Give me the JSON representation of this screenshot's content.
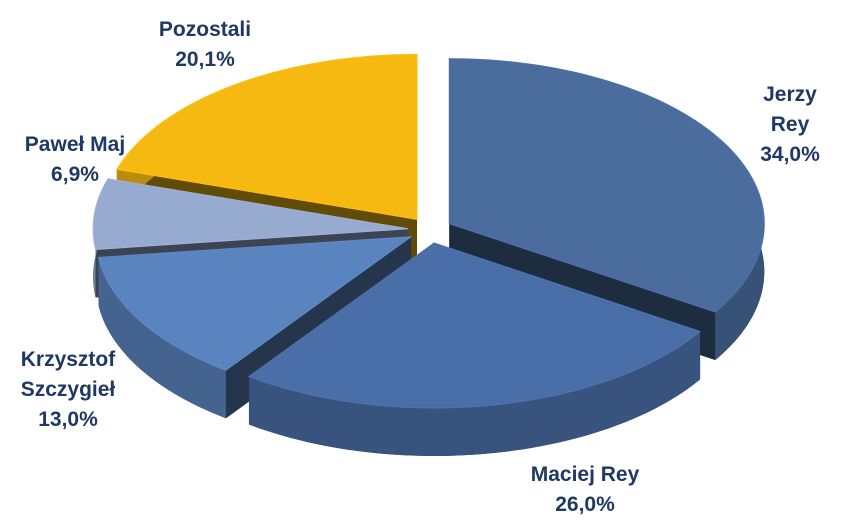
{
  "chart_data": {
    "type": "pie",
    "categories": [
      "Jerzy Rey",
      "Maciej Rey",
      "Krzysztof Szczygieł",
      "Paweł Maj",
      "Pozostali"
    ],
    "values": [
      34.0,
      26.0,
      13.0,
      6.9,
      20.1
    ],
    "value_labels": [
      "34,0%",
      "26,0%",
      "13,0%",
      "6,9%",
      "20,1%"
    ],
    "colors": [
      "#4a6d9e",
      "#4a6fa8",
      "#5a84bf",
      "#97abd0",
      "#f6b912"
    ]
  }
}
